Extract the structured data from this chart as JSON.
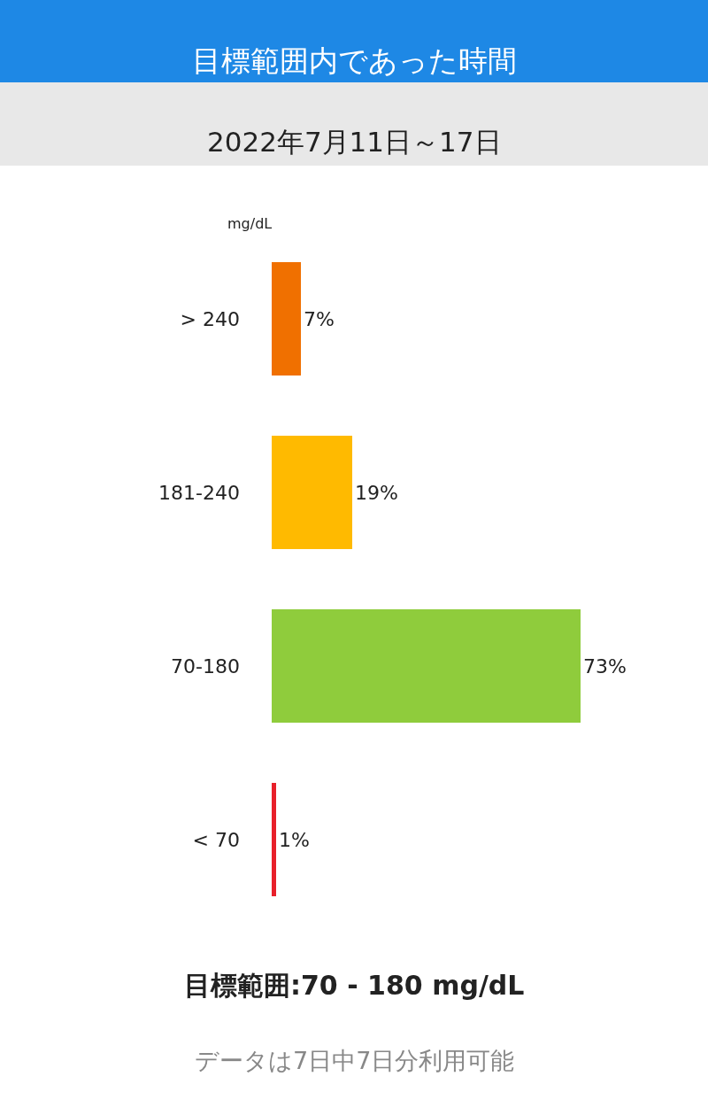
{
  "chart_data": {
    "type": "bar",
    "orientation": "horizontal",
    "title": "目標範囲内であった時間",
    "subtitle": "2022年7月11日～17日",
    "ylabel": "mg/dL",
    "categories": [
      "> 240",
      "181-240",
      "70-180",
      "< 70"
    ],
    "values": [
      7,
      19,
      73,
      1
    ],
    "value_labels": [
      "7%",
      "19%",
      "73%",
      "1%"
    ],
    "colors": [
      "#f07000",
      "#ffba00",
      "#8fcc3c",
      "#e8202a"
    ],
    "annotations": [
      "目標範囲:70 - 180 mg/dL",
      "データは7日中7日分利用可能"
    ]
  }
}
